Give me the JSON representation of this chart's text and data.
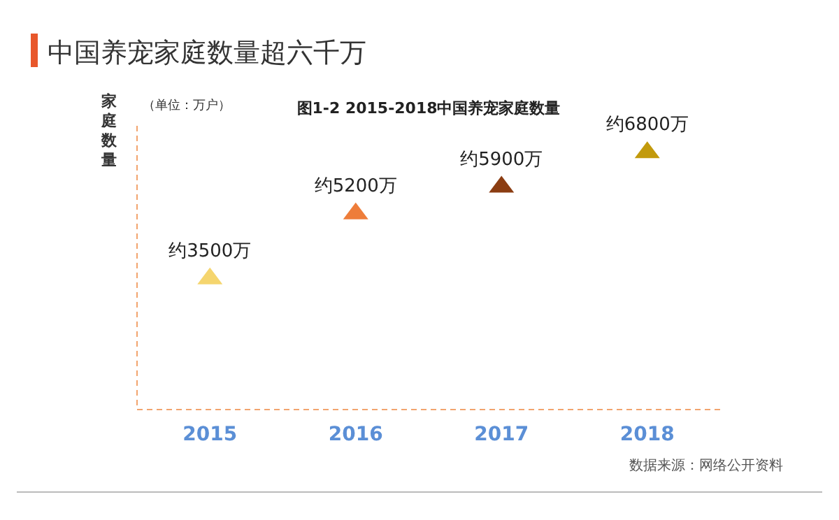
{
  "chart_data": {
    "type": "scatter",
    "title": "中国养宠家庭数量超六千万",
    "subtitle": "图1-2  2015-2018中国养宠家庭数量",
    "ylabel": "家庭数量",
    "annotations": [
      "（单位：万户）",
      "数据来源：网络公开资料"
    ],
    "categories": [
      "2015",
      "2016",
      "2017",
      "2018"
    ],
    "values": [
      3500,
      5200,
      5900,
      6800
    ],
    "value_labels": [
      "约3500万",
      "约5200万",
      "约5900万",
      "约6800万"
    ],
    "colors": [
      "#f5d56e",
      "#ee7d3a",
      "#8b3d12",
      "#c29a0c"
    ],
    "marker": "triangle"
  }
}
